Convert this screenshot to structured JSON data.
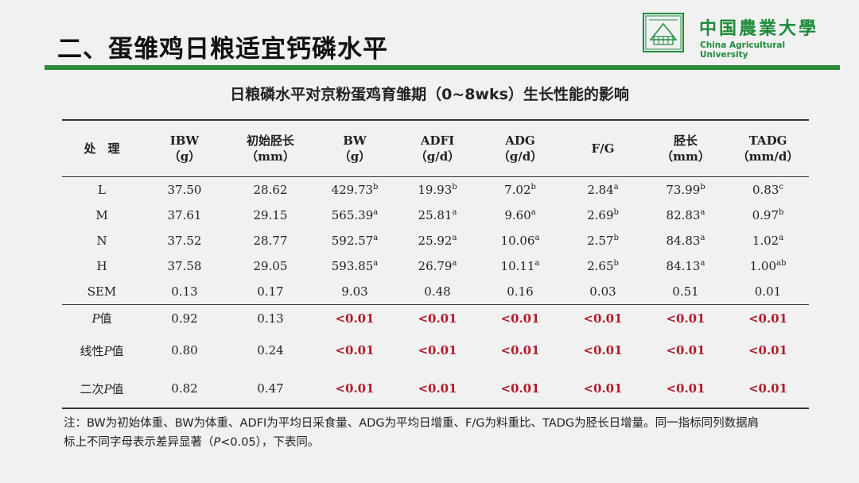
{
  "slide": {
    "title": "二、蛋雏鸡日粮适宜钙磷水平"
  },
  "logo": {
    "cn": "中国農業大學",
    "en": "China Agricultural University"
  },
  "table": {
    "caption": "日粮磷水平对京粉蛋鸡育雏期（0~8wks）生长性能的影响",
    "headers": [
      {
        "l1": "处　理",
        "l2": ""
      },
      {
        "l1": "IBW",
        "l2": "（g）"
      },
      {
        "l1": "初始胫长",
        "l2": "（mm）"
      },
      {
        "l1": "BW",
        "l2": "（g）"
      },
      {
        "l1": "ADFI",
        "l2": "（g/d）"
      },
      {
        "l1": "ADG",
        "l2": "（g/d）"
      },
      {
        "l1": "F/G",
        "l2": ""
      },
      {
        "l1": "胫长",
        "l2": "（mm）"
      },
      {
        "l1": "TADG",
        "l2": "（mm/d）"
      }
    ],
    "rows": [
      {
        "label": "L",
        "cells": [
          [
            "37.50",
            ""
          ],
          [
            "28.62",
            ""
          ],
          [
            "429.73",
            "b"
          ],
          [
            "19.93",
            "b"
          ],
          [
            "7.02",
            "b"
          ],
          [
            "2.84",
            "a"
          ],
          [
            "73.99",
            "b"
          ],
          [
            "0.83",
            "c"
          ]
        ]
      },
      {
        "label": "M",
        "cells": [
          [
            "37.61",
            ""
          ],
          [
            "29.15",
            ""
          ],
          [
            "565.39",
            "a"
          ],
          [
            "25.81",
            "a"
          ],
          [
            "9.60",
            "a"
          ],
          [
            "2.69",
            "b"
          ],
          [
            "82.83",
            "a"
          ],
          [
            "0.97",
            "b"
          ]
        ]
      },
      {
        "label": "N",
        "cells": [
          [
            "37.52",
            ""
          ],
          [
            "28.77",
            ""
          ],
          [
            "592.57",
            "a"
          ],
          [
            "25.92",
            "a"
          ],
          [
            "10.06",
            "a"
          ],
          [
            "2.57",
            "b"
          ],
          [
            "84.83",
            "a"
          ],
          [
            "1.02",
            "a"
          ]
        ]
      },
      {
        "label": "H",
        "cells": [
          [
            "37.58",
            ""
          ],
          [
            "29.05",
            ""
          ],
          [
            "593.85",
            "a"
          ],
          [
            "26.79",
            "a"
          ],
          [
            "10.11",
            "a"
          ],
          [
            "2.65",
            "b"
          ],
          [
            "84.13",
            "a"
          ],
          [
            "1.00",
            "ab"
          ]
        ]
      },
      {
        "label": "SEM",
        "cells": [
          [
            "0.13",
            ""
          ],
          [
            "0.17",
            ""
          ],
          [
            "9.03",
            ""
          ],
          [
            "0.48",
            ""
          ],
          [
            "0.16",
            ""
          ],
          [
            "0.03",
            ""
          ],
          [
            "0.51",
            ""
          ],
          [
            "0.01",
            ""
          ]
        ]
      }
    ],
    "p_rows": [
      {
        "label_prefix": "",
        "label_p": "P",
        "label_suffix": "值",
        "cells": [
          "0.92",
          "0.13",
          "<0.01",
          "<0.01",
          "<0.01",
          "<0.01",
          "<0.01",
          "<0.01"
        ]
      },
      {
        "label_prefix": "线性",
        "label_p": "P",
        "label_suffix": "值",
        "cells": [
          "0.80",
          "0.24",
          "<0.01",
          "<0.01",
          "<0.01",
          "<0.01",
          "<0.01",
          "<0.01"
        ]
      },
      {
        "label_prefix": "二次",
        "label_p": "P",
        "label_suffix": "值",
        "cells": [
          "0.82",
          "0.47",
          "<0.01",
          "<0.01",
          "<0.01",
          "<0.01",
          "<0.01",
          "<0.01"
        ]
      }
    ],
    "highlight_color": "#b21a2c"
  },
  "note": {
    "line1": "注：BW为初始体重、BW为体重、ADFI为平均日采食量、ADG为平均日增重、F/G为料重比、TADG为胫长日增量。同一指标同列数据肩",
    "line2_pre": "标上不同字母表示差异显著（",
    "line2_p": "P",
    "line2_post": "<0.05），下表同。"
  }
}
